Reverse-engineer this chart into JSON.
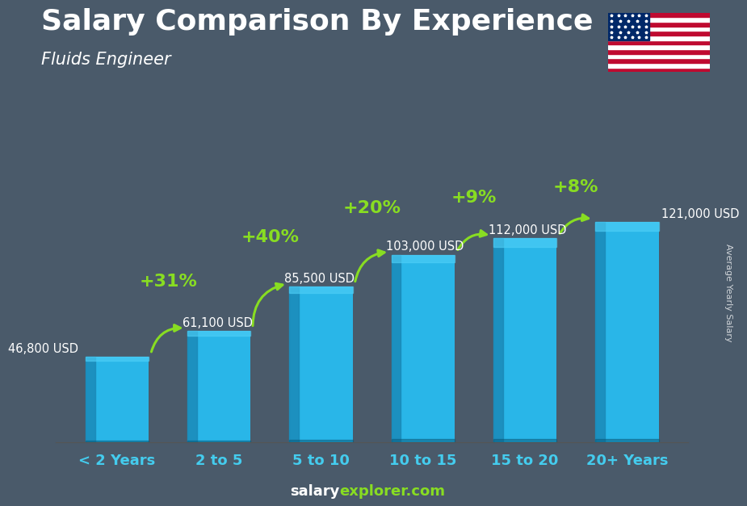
{
  "title": "Salary Comparison By Experience",
  "subtitle": "Fluids Engineer",
  "categories": [
    "< 2 Years",
    "2 to 5",
    "5 to 10",
    "10 to 15",
    "15 to 20",
    "20+ Years"
  ],
  "values": [
    46800,
    61100,
    85500,
    103000,
    112000,
    121000
  ],
  "labels": [
    "46,800 USD",
    "61,100 USD",
    "85,500 USD",
    "103,000 USD",
    "112,000 USD",
    "121,000 USD"
  ],
  "pct_changes": [
    "+31%",
    "+40%",
    "+20%",
    "+9%",
    "+8%"
  ],
  "bar_color": "#29B6E8",
  "bar_color_dark": "#1A8AB8",
  "bar_color_top": "#50D0F8",
  "bg_color": "#4a5a6a",
  "title_color": "#ffffff",
  "pct_color": "#88DD22",
  "xlabel_color": "#44CCEE",
  "ylabel_text": "Average Yearly Salary",
  "footer_salary": "salary",
  "footer_explorer": "explorer.com",
  "title_fontsize": 26,
  "subtitle_fontsize": 15,
  "ylabel_fontsize": 8,
  "xlabel_fontsize": 13,
  "label_fontsize": 10.5,
  "pct_fontsize": 16,
  "footer_fontsize": 13,
  "ylim_max": 165000,
  "bar_width": 0.62
}
